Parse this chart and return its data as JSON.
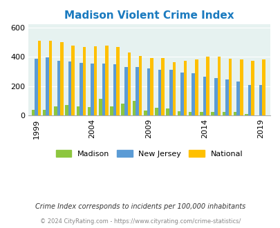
{
  "title": "Madison Violent Crime Index",
  "years": [
    1999,
    2000,
    2001,
    2002,
    2003,
    2004,
    2005,
    2006,
    2007,
    2008,
    2009,
    2010,
    2011,
    2012,
    2013,
    2014,
    2015,
    2016,
    2017,
    2018,
    2019
  ],
  "madison": [
    40,
    40,
    65,
    70,
    65,
    60,
    115,
    65,
    80,
    100,
    35,
    55,
    50,
    30,
    25,
    25,
    25,
    25,
    25,
    10,
    0
  ],
  "new_jersey": [
    385,
    395,
    375,
    370,
    360,
    355,
    355,
    350,
    330,
    330,
    320,
    310,
    310,
    295,
    290,
    265,
    255,
    245,
    230,
    210,
    210
  ],
  "national": [
    510,
    510,
    500,
    475,
    465,
    470,
    475,
    465,
    430,
    405,
    390,
    390,
    365,
    375,
    380,
    400,
    400,
    385,
    380,
    375,
    380
  ],
  "madison_color": "#8dc63f",
  "nj_color": "#5b9bd5",
  "national_color": "#ffc000",
  "bg_color": "#e6f2f0",
  "ylim": [
    0,
    620
  ],
  "yticks": [
    0,
    200,
    400,
    600
  ],
  "xlabel_ticks": [
    1999,
    2004,
    2009,
    2014,
    2019
  ],
  "bar_width": 0.28,
  "subtitle": "Crime Index corresponds to incidents per 100,000 inhabitants",
  "footer": "© 2024 CityRating.com - https://www.cityrating.com/crime-statistics/",
  "title_color": "#1a7abf",
  "footer_color": "#888888",
  "subtitle_color": "#333333"
}
